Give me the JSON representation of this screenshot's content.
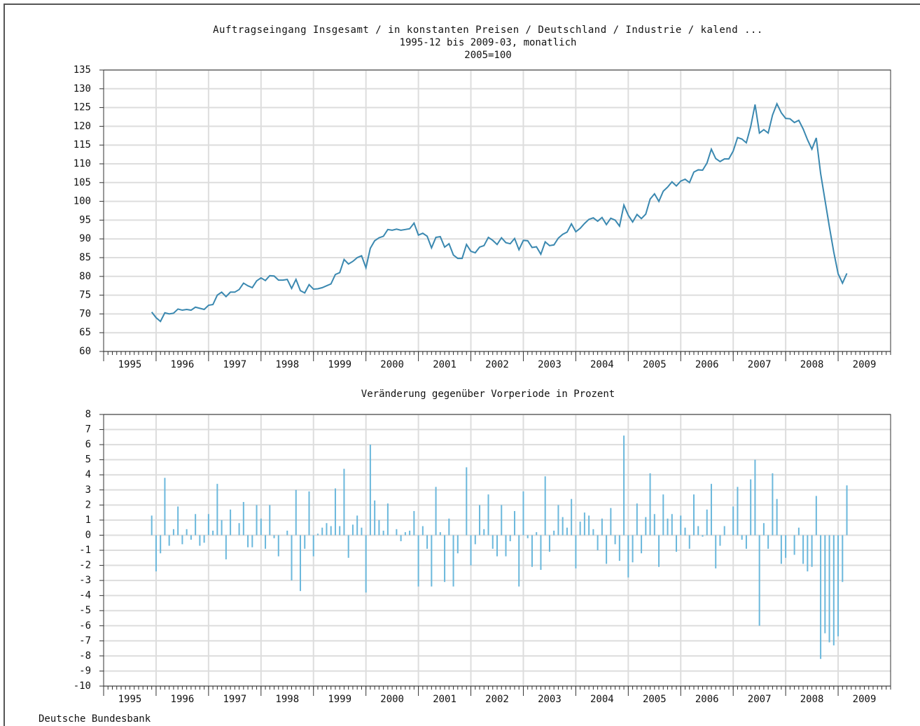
{
  "chart_data": [
    {
      "type": "line",
      "title": "Auftragseingang Insgesamt / in konstanten Preisen / Deutschland / Industrie / kalend ...",
      "subtitle": "1995-12 bis 2009-03, monatlich",
      "note": "2005=100",
      "color": "#3a88b0",
      "grid": true,
      "xlim": [
        1995,
        2010
      ],
      "xticks": [
        1995,
        1996,
        1997,
        1998,
        1999,
        2000,
        2001,
        2002,
        2003,
        2004,
        2005,
        2006,
        2007,
        2008,
        2009
      ],
      "ylim": [
        60,
        135
      ],
      "yticks": [
        60,
        65,
        70,
        75,
        80,
        85,
        90,
        95,
        100,
        105,
        110,
        115,
        120,
        125,
        130,
        135
      ],
      "x": [
        "1995-12",
        "1996-01",
        "1996-02",
        "1996-03",
        "1996-04",
        "1996-05",
        "1996-06",
        "1996-07",
        "1996-08",
        "1996-09",
        "1996-10",
        "1996-11",
        "1996-12",
        "1997-01",
        "1997-02",
        "1997-03",
        "1997-04",
        "1997-05",
        "1997-06",
        "1997-07",
        "1997-08",
        "1997-09",
        "1997-10",
        "1997-11",
        "1997-12",
        "1998-01",
        "1998-02",
        "1998-03",
        "1998-04",
        "1998-05",
        "1998-06",
        "1998-07",
        "1998-08",
        "1998-09",
        "1998-10",
        "1998-11",
        "1998-12",
        "1999-01",
        "1999-02",
        "1999-03",
        "1999-04",
        "1999-05",
        "1999-06",
        "1999-07",
        "1999-08",
        "1999-09",
        "1999-10",
        "1999-11",
        "1999-12",
        "2000-01",
        "2000-02",
        "2000-03",
        "2000-04",
        "2000-05",
        "2000-06",
        "2000-07",
        "2000-08",
        "2000-09",
        "2000-10",
        "2000-11",
        "2000-12",
        "2001-01",
        "2001-02",
        "2001-03",
        "2001-04",
        "2001-05",
        "2001-06",
        "2001-07",
        "2001-08",
        "2001-09",
        "2001-10",
        "2001-11",
        "2001-12",
        "2002-01",
        "2002-02",
        "2002-03",
        "2002-04",
        "2002-05",
        "2002-06",
        "2002-07",
        "2002-08",
        "2002-09",
        "2002-10",
        "2002-11",
        "2002-12",
        "2003-01",
        "2003-02",
        "2003-03",
        "2003-04",
        "2003-05",
        "2003-06",
        "2003-07",
        "2003-08",
        "2003-09",
        "2003-10",
        "2003-11",
        "2003-12",
        "2004-01",
        "2004-02",
        "2004-03",
        "2004-04",
        "2004-05",
        "2004-06",
        "2004-07",
        "2004-08",
        "2004-09",
        "2004-10",
        "2004-11",
        "2004-12",
        "2005-01",
        "2005-02",
        "2005-03",
        "2005-04",
        "2005-05",
        "2005-06",
        "2005-07",
        "2005-08",
        "2005-09",
        "2005-10",
        "2005-11",
        "2005-12",
        "2006-01",
        "2006-02",
        "2006-03",
        "2006-04",
        "2006-05",
        "2006-06",
        "2006-07",
        "2006-08",
        "2006-09",
        "2006-10",
        "2006-11",
        "2006-12",
        "2007-01",
        "2007-02",
        "2007-03",
        "2007-04",
        "2007-05",
        "2007-06",
        "2007-07",
        "2007-08",
        "2007-09",
        "2007-10",
        "2007-11",
        "2007-12",
        "2008-01",
        "2008-02",
        "2008-03",
        "2008-04",
        "2008-05",
        "2008-06",
        "2008-07",
        "2008-08",
        "2008-09",
        "2008-10",
        "2008-11",
        "2008-12",
        "2009-01",
        "2009-02",
        "2009-03"
      ],
      "values": [
        70.5,
        69.0,
        68.0,
        70.3,
        70.0,
        70.2,
        71.3,
        71.0,
        71.2,
        71.0,
        71.8,
        71.5,
        71.2,
        72.3,
        72.5,
        75.0,
        75.8,
        74.6,
        75.8,
        75.8,
        76.5,
        78.2,
        77.5,
        77.0,
        78.8,
        79.6,
        78.9,
        80.2,
        80.1,
        79.0,
        79.0,
        79.2,
        76.8,
        79.2,
        76.2,
        75.6,
        77.8,
        76.6,
        76.7,
        77.0,
        77.5,
        78.0,
        80.5,
        81.0,
        84.5,
        83.3,
        84.0,
        85.0,
        85.5,
        82.3,
        87.5,
        89.5,
        90.3,
        90.7,
        92.5,
        92.3,
        92.6,
        92.3,
        92.5,
        92.7,
        94.2,
        91.0,
        91.5,
        90.7,
        87.6,
        90.4,
        90.6,
        87.8,
        88.7,
        85.7,
        84.8,
        84.8,
        88.5,
        86.7,
        86.3,
        87.8,
        88.2,
        90.4,
        89.6,
        88.5,
        90.3,
        89.0,
        88.7,
        90.1,
        87.1,
        89.6,
        89.5,
        87.7,
        87.9,
        85.9,
        89.2,
        88.2,
        88.4,
        90.2,
        91.2,
        91.8,
        94.0,
        91.9,
        92.8,
        94.1,
        95.2,
        95.6,
        94.7,
        95.7,
        93.8,
        95.5,
        95.0,
        93.4,
        99.0,
        96.3,
        94.5,
        96.5,
        95.4,
        96.6,
        100.6,
        102.0,
        100.0,
        102.7,
        103.8,
        105.2,
        104.1,
        105.4,
        105.9,
        105.0,
        107.8,
        108.4,
        108.3,
        110.2,
        113.9,
        111.4,
        110.6,
        111.3,
        111.3,
        113.4,
        117.0,
        116.6,
        115.6,
        119.9,
        125.8,
        118.2,
        119.1,
        118.2,
        123.0,
        126.0,
        123.6,
        122.1,
        122.0,
        121.0,
        121.6,
        119.3,
        116.4,
        113.9,
        116.9,
        107.4,
        100.3,
        93.2,
        86.5,
        80.7,
        78.2,
        80.8
      ]
    },
    {
      "type": "bar",
      "title": "Veränderung gegenüber Vorperiode in Prozent",
      "color": "#6bb8dc",
      "grid": true,
      "xlim": [
        1995,
        2010
      ],
      "xticks": [
        1995,
        1996,
        1997,
        1998,
        1999,
        2000,
        2001,
        2002,
        2003,
        2004,
        2005,
        2006,
        2007,
        2008,
        2009
      ],
      "ylim": [
        -10,
        8
      ],
      "yticks": [
        -10,
        -9,
        -8,
        -7,
        -6,
        -5,
        -4,
        -3,
        -2,
        -1,
        0,
        1,
        2,
        3,
        4,
        5,
        6,
        7,
        8
      ],
      "x": [
        "1995-12",
        "1996-01",
        "1996-02",
        "1996-03",
        "1996-04",
        "1996-05",
        "1996-06",
        "1996-07",
        "1996-08",
        "1996-09",
        "1996-10",
        "1996-11",
        "1996-12",
        "1997-01",
        "1997-02",
        "1997-03",
        "1997-04",
        "1997-05",
        "1997-06",
        "1997-07",
        "1997-08",
        "1997-09",
        "1997-10",
        "1997-11",
        "1997-12",
        "1998-01",
        "1998-02",
        "1998-03",
        "1998-04",
        "1998-05",
        "1998-06",
        "1998-07",
        "1998-08",
        "1998-09",
        "1998-10",
        "1998-11",
        "1998-12",
        "1999-01",
        "1999-02",
        "1999-03",
        "1999-04",
        "1999-05",
        "1999-06",
        "1999-07",
        "1999-08",
        "1999-09",
        "1999-10",
        "1999-11",
        "1999-12",
        "2000-01",
        "2000-02",
        "2000-03",
        "2000-04",
        "2000-05",
        "2000-06",
        "2000-07",
        "2000-08",
        "2000-09",
        "2000-10",
        "2000-11",
        "2000-12",
        "2001-01",
        "2001-02",
        "2001-03",
        "2001-04",
        "2001-05",
        "2001-06",
        "2001-07",
        "2001-08",
        "2001-09",
        "2001-10",
        "2001-11",
        "2001-12",
        "2002-01",
        "2002-02",
        "2002-03",
        "2002-04",
        "2002-05",
        "2002-06",
        "2002-07",
        "2002-08",
        "2002-09",
        "2002-10",
        "2002-11",
        "2002-12",
        "2003-01",
        "2003-02",
        "2003-03",
        "2003-04",
        "2003-05",
        "2003-06",
        "2003-07",
        "2003-08",
        "2003-09",
        "2003-10",
        "2003-11",
        "2003-12",
        "2004-01",
        "2004-02",
        "2004-03",
        "2004-04",
        "2004-05",
        "2004-06",
        "2004-07",
        "2004-08",
        "2004-09",
        "2004-10",
        "2004-11",
        "2004-12",
        "2005-01",
        "2005-02",
        "2005-03",
        "2005-04",
        "2005-05",
        "2005-06",
        "2005-07",
        "2005-08",
        "2005-09",
        "2005-10",
        "2005-11",
        "2005-12",
        "2006-01",
        "2006-02",
        "2006-03",
        "2006-04",
        "2006-05",
        "2006-06",
        "2006-07",
        "2006-08",
        "2006-09",
        "2006-10",
        "2006-11",
        "2006-12",
        "2007-01",
        "2007-02",
        "2007-03",
        "2007-04",
        "2007-05",
        "2007-06",
        "2007-07",
        "2007-08",
        "2007-09",
        "2007-10",
        "2007-11",
        "2007-12",
        "2008-01",
        "2008-02",
        "2008-03",
        "2008-04",
        "2008-05",
        "2008-06",
        "2008-07",
        "2008-08",
        "2008-09",
        "2008-10",
        "2008-11",
        "2008-12",
        "2009-01",
        "2009-02",
        "2009-03"
      ],
      "values": [
        1.3,
        -2.4,
        -1.2,
        3.8,
        -0.7,
        0.4,
        1.9,
        -0.6,
        0.4,
        -0.3,
        1.4,
        -0.7,
        -0.5,
        1.4,
        0.3,
        3.4,
        1.0,
        -1.6,
        1.7,
        0.0,
        0.8,
        2.2,
        -0.8,
        -0.8,
        2.0,
        1.1,
        -0.9,
        2.0,
        -0.2,
        -1.4,
        0.0,
        0.3,
        -3.0,
        3.0,
        -3.7,
        -0.9,
        2.9,
        -1.4,
        0.1,
        0.5,
        0.8,
        0.6,
        3.1,
        0.6,
        4.4,
        -1.5,
        0.7,
        1.3,
        0.5,
        -3.8,
        6.0,
        2.3,
        1.0,
        0.3,
        2.1,
        0.0,
        0.4,
        -0.4,
        0.2,
        0.3,
        1.6,
        -3.4,
        0.6,
        -0.9,
        -3.4,
        3.2,
        0.2,
        -3.1,
        1.1,
        -3.4,
        -1.2,
        0.0,
        4.5,
        -2.0,
        -0.6,
        2.0,
        0.4,
        2.7,
        -0.9,
        -1.4,
        2.0,
        -1.4,
        -0.4,
        1.6,
        -3.4,
        2.9,
        -0.2,
        -2.1,
        0.2,
        -2.3,
        3.9,
        -1.1,
        0.3,
        2.0,
        1.2,
        0.5,
        2.4,
        -2.2,
        0.9,
        1.5,
        1.3,
        0.4,
        -1.0,
        1.1,
        -1.9,
        1.8,
        -0.6,
        -1.7,
        6.6,
        -2.8,
        -1.8,
        2.1,
        -1.2,
        1.2,
        4.1,
        1.4,
        -2.1,
        2.7,
        1.1,
        1.4,
        -1.1,
        1.3,
        0.5,
        -0.9,
        2.7,
        0.6,
        -0.1,
        1.7,
        3.4,
        -2.2,
        -0.7,
        0.6,
        0.0,
        1.9,
        3.2,
        -0.3,
        -0.9,
        3.7,
        5.0,
        -6.0,
        0.8,
        -0.9,
        4.1,
        2.4,
        -1.9,
        -1.5,
        0.0,
        -1.3,
        0.5,
        -1.9,
        -2.4,
        -2.1,
        2.6,
        -8.2,
        -6.5,
        -7.1,
        -7.3,
        -6.7,
        -3.1,
        3.3
      ]
    }
  ],
  "source": "Deutsche Bundesbank"
}
